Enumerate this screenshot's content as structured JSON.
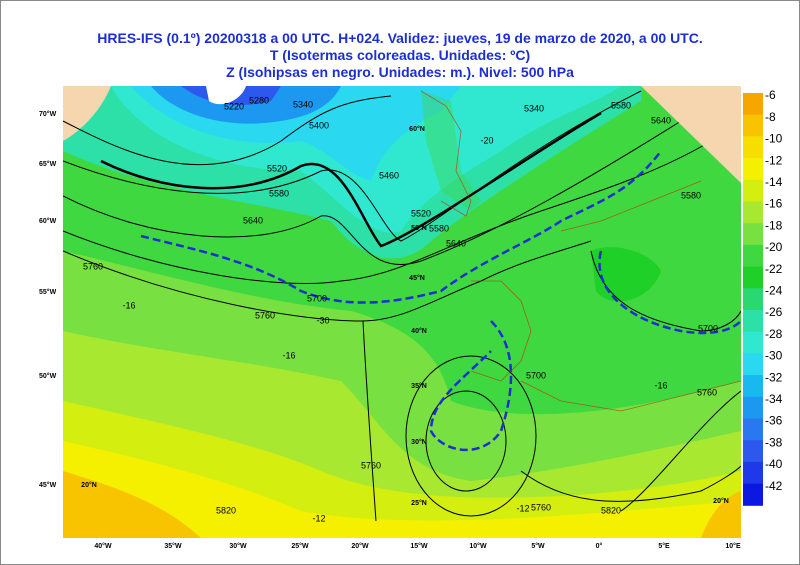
{
  "header": {
    "line1": "HRES-IFS (0.1º) 20200318 a 00 UTC.  H+024. Validez: jueves, 19 de marzo de 2020,  a  00 UTC.",
    "line2": "T (Isotermas coloreadas. Unidades: ºC)",
    "line3": "Z (Isohipsas en negro. Unidades: m.).   Nivel: 500 hPa"
  },
  "legend": {
    "labels": [
      -6,
      -8,
      -10,
      -12,
      -14,
      -16,
      -18,
      -20,
      -22,
      -24,
      -26,
      -28,
      -30,
      -32,
      -34,
      -36,
      -38,
      -40,
      -42
    ],
    "colors": [
      "#f7a600",
      "#f8c400",
      "#f8de00",
      "#f4f000",
      "#d4ee10",
      "#a8e830",
      "#78e040",
      "#40d840",
      "#1ed028",
      "#28d870",
      "#2ce0a8",
      "#30e8d0",
      "#2ad8f0",
      "#18b8f0",
      "#1c98f0",
      "#2a78f0",
      "#2c58ee",
      "#1e38ea",
      "#0a18e0"
    ]
  },
  "map": {
    "left_labels": [
      "70°W",
      "65°W",
      "60°W",
      "55°W",
      "50°W",
      "45°W"
    ],
    "bottom_labels": [
      "40°W",
      "35°W",
      "30°W",
      "25°W",
      "20°W",
      "15°W",
      "10°W",
      "5°W",
      "0°",
      "5°E",
      "10°E"
    ],
    "inner_labels": [
      "60°N",
      "50°N",
      "45°N",
      "40°N",
      "35°N",
      "30°N",
      "25°N",
      "20°N",
      "20°N"
    ],
    "contour_labels": [
      "5220",
      "5280",
      "5340",
      "5400",
      "5460",
      "5520",
      "5580",
      "5640",
      "5700",
      "5760",
      "5760",
      "5760",
      "5820",
      "5760",
      "5820",
      "5760",
      "5700",
      "5700",
      "5640",
      "5580",
      "5520",
      "5340",
      "5580",
      "5640",
      "5580"
    ],
    "isotherm_labels": [
      "-16",
      "-16",
      "-12",
      "-12",
      "-20",
      "-30",
      "-16"
    ]
  }
}
